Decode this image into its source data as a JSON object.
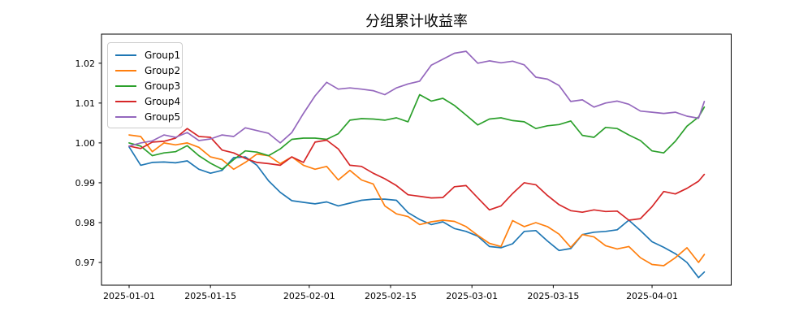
{
  "chart_data": {
    "type": "line",
    "title": "分组累计收益率",
    "xlabel": "",
    "ylabel": "",
    "grid": false,
    "legend_position": "upper left",
    "ylim": [
      0.9643,
      1.0273
    ],
    "yticks": [
      "0.97",
      "0.98",
      "0.99",
      "1.00",
      "1.01",
      "1.02"
    ],
    "ytick_values": [
      0.97,
      0.98,
      0.99,
      1.0,
      1.01,
      1.02
    ],
    "xticks": [
      "2025-01-01",
      "2025-01-15",
      "2025-02-01",
      "2025-02-15",
      "2025-03-01",
      "2025-03-15",
      "2025-04-01"
    ],
    "x_range": [
      "2025-01-01",
      "2025-04-10"
    ],
    "x": [
      "2025-01-01",
      "2025-01-03",
      "2025-01-05",
      "2025-01-07",
      "2025-01-09",
      "2025-01-11",
      "2025-01-13",
      "2025-01-15",
      "2025-01-17",
      "2025-01-19",
      "2025-01-21",
      "2025-01-23",
      "2025-01-25",
      "2025-01-27",
      "2025-01-29",
      "2025-01-31",
      "2025-02-02",
      "2025-02-04",
      "2025-02-06",
      "2025-02-08",
      "2025-02-10",
      "2025-02-12",
      "2025-02-14",
      "2025-02-16",
      "2025-02-18",
      "2025-02-20",
      "2025-02-22",
      "2025-02-24",
      "2025-02-26",
      "2025-02-28",
      "2025-03-02",
      "2025-03-04",
      "2025-03-06",
      "2025-03-08",
      "2025-03-10",
      "2025-03-12",
      "2025-03-14",
      "2025-03-16",
      "2025-03-18",
      "2025-03-20",
      "2025-03-22",
      "2025-03-24",
      "2025-03-26",
      "2025-03-28",
      "2025-03-30",
      "2025-04-01",
      "2025-04-03",
      "2025-04-05",
      "2025-04-07",
      "2025-04-09",
      "2025-04-10"
    ],
    "series": [
      {
        "name": "Group1",
        "color": "#1f77b4",
        "values": [
          0.999,
          0.9944,
          0.9951,
          0.9952,
          0.995,
          0.9955,
          0.9934,
          0.9924,
          0.9931,
          0.9963,
          0.9965,
          0.9944,
          0.9905,
          0.9876,
          0.9855,
          0.9851,
          0.9847,
          0.9852,
          0.9842,
          0.9849,
          0.9856,
          0.9859,
          0.9859,
          0.9856,
          0.9825,
          0.9808,
          0.9795,
          0.9802,
          0.9785,
          0.9778,
          0.9766,
          0.974,
          0.9737,
          0.9747,
          0.9778,
          0.978,
          0.9754,
          0.973,
          0.9735,
          0.977,
          0.9776,
          0.9778,
          0.9782,
          0.9806,
          0.978,
          0.9752,
          0.9738,
          0.9722,
          0.97,
          0.9662,
          0.9676
        ]
      },
      {
        "name": "Group2",
        "color": "#ff7f0e",
        "values": [
          1.002,
          1.0016,
          0.9978,
          1.0,
          0.9995,
          1.0,
          0.9989,
          0.9965,
          0.9958,
          0.9934,
          0.9951,
          0.9972,
          0.9968,
          0.9948,
          0.9965,
          0.9944,
          0.9934,
          0.9941,
          0.9907,
          0.9931,
          0.9907,
          0.9897,
          0.9842,
          0.9822,
          0.9815,
          0.9795,
          0.9802,
          0.9806,
          0.9803,
          0.979,
          0.9768,
          0.9748,
          0.974,
          0.9805,
          0.979,
          0.98,
          0.979,
          0.9771,
          0.9738,
          0.977,
          0.9764,
          0.9742,
          0.9734,
          0.974,
          0.9712,
          0.9695,
          0.9692,
          0.9712,
          0.9737,
          0.97,
          0.972
        ]
      },
      {
        "name": "Group3",
        "color": "#2ca02c",
        "values": [
          1.0,
          0.9992,
          0.9968,
          0.9975,
          0.9978,
          0.9993,
          0.9968,
          0.9949,
          0.9934,
          0.9958,
          0.998,
          0.9977,
          0.9968,
          0.9985,
          1.0009,
          1.0012,
          1.0012,
          1.0009,
          1.0023,
          1.0057,
          1.0061,
          1.006,
          1.0057,
          1.0063,
          1.0053,
          1.0121,
          1.0105,
          1.0112,
          1.0094,
          1.007,
          1.0045,
          1.006,
          1.0063,
          1.0056,
          1.0053,
          1.0036,
          1.0043,
          1.0046,
          1.0055,
          1.0019,
          1.0014,
          1.0039,
          1.0036,
          1.002,
          1.0006,
          0.998,
          0.9975,
          1.0004,
          1.0042,
          1.0065,
          1.009
        ]
      },
      {
        "name": "Group4",
        "color": "#d62728",
        "values": [
          0.9992,
          0.9986,
          1.0002,
          1.0004,
          1.0012,
          1.0036,
          1.0016,
          1.0014,
          0.9982,
          0.9975,
          0.9961,
          0.9951,
          0.9948,
          0.9944,
          0.9965,
          0.9951,
          1.0002,
          1.0007,
          0.9985,
          0.9944,
          0.9941,
          0.9924,
          0.991,
          0.9893,
          0.987,
          0.9866,
          0.9862,
          0.9863,
          0.989,
          0.9893,
          0.9862,
          0.9832,
          0.9842,
          0.9873,
          0.99,
          0.9895,
          0.9868,
          0.9845,
          0.983,
          0.9826,
          0.9832,
          0.9828,
          0.9829,
          0.9806,
          0.981,
          0.984,
          0.9878,
          0.9872,
          0.9886,
          0.9904,
          0.9921
        ]
      },
      {
        "name": "Group5",
        "color": "#9467bd",
        "values": [
          0.9992,
          1.0,
          1.0005,
          1.002,
          1.0014,
          1.0026,
          1.0006,
          1.001,
          1.002,
          1.0016,
          1.0038,
          1.0031,
          1.0024,
          1.0,
          1.0026,
          1.0074,
          1.0118,
          1.0152,
          1.0135,
          1.0138,
          1.0135,
          1.0131,
          1.0121,
          1.0138,
          1.0148,
          1.0155,
          1.0195,
          1.021,
          1.0225,
          1.023,
          1.02,
          1.0206,
          1.0201,
          1.0205,
          1.0196,
          1.0165,
          1.016,
          1.0144,
          1.0104,
          1.0108,
          1.009,
          1.01,
          1.0105,
          1.0097,
          1.008,
          1.0077,
          1.0074,
          1.0077,
          1.0067,
          1.0062,
          1.0104
        ]
      }
    ]
  }
}
